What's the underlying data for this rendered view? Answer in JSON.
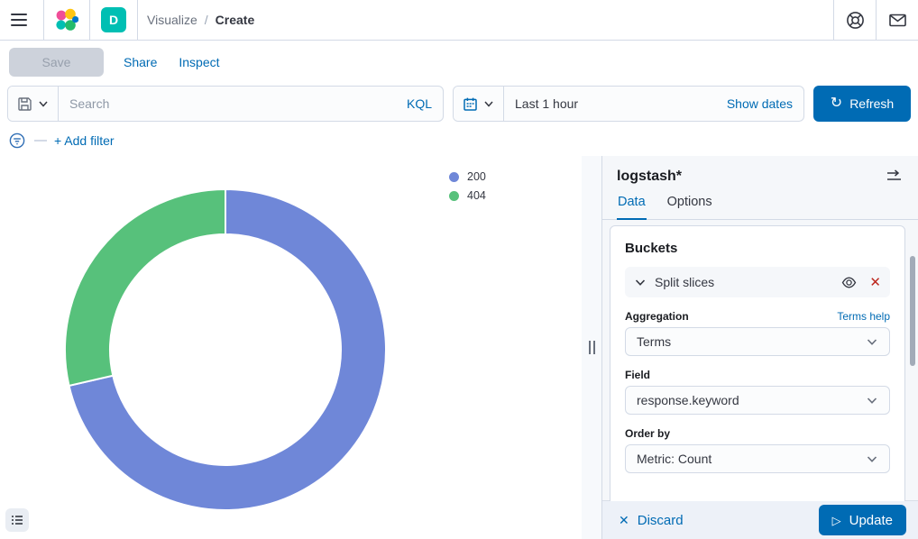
{
  "topnav": {
    "space_badge": "D",
    "breadcrumbs": [
      "Visualize",
      "Create"
    ],
    "breadcrumb_separator": "/"
  },
  "actionbar": {
    "save": "Save",
    "share": "Share",
    "inspect": "Inspect"
  },
  "querybar": {
    "search_placeholder": "Search",
    "kql_label": "KQL",
    "time_value": "Last 1 hour",
    "show_dates": "Show dates",
    "refresh": "Refresh"
  },
  "filterbar": {
    "add_filter": "+ Add filter"
  },
  "icons": {
    "refresh_glyph": "↻",
    "close_glyph": "✕",
    "play_glyph": "▷"
  },
  "chart_data": {
    "type": "pie",
    "subtype": "donut",
    "title": "",
    "categories": [
      "200",
      "404"
    ],
    "values": [
      71.4,
      28.6
    ],
    "units": "percent of total (estimated from arc angles)",
    "colors": [
      "#6F87D8",
      "#57C17B"
    ],
    "start_angle_deg": 0,
    "direction": "clockwise",
    "inner_radius_ratio": 0.72,
    "legend_position": "top-right",
    "legend_entries": [
      "200",
      "404"
    ]
  },
  "panel": {
    "index_pattern": "logstash*",
    "tabs": [
      {
        "label": "Data",
        "active": true
      },
      {
        "label": "Options",
        "active": false
      }
    ],
    "buckets": {
      "title": "Buckets",
      "agg_row_label": "Split slices",
      "fields": [
        {
          "label": "Aggregation",
          "value": "Terms",
          "help": "Terms help"
        },
        {
          "label": "Field",
          "value": "response.keyword"
        },
        {
          "label": "Order by",
          "value": "Metric: Count"
        }
      ]
    },
    "footer": {
      "discard": "Discard",
      "update": "Update"
    }
  }
}
